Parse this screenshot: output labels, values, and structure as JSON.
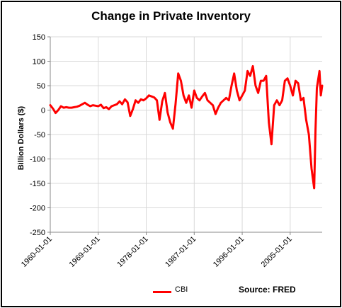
{
  "title": "Change in Private Inventory",
  "source_text": "Source: FRED",
  "chart_data": {
    "type": "line",
    "title": "Change in Private Inventory",
    "xlabel": "",
    "ylabel": "Billion Dollars ($)",
    "ylim": [
      -250,
      150
    ],
    "y_ticks": [
      -250,
      -200,
      -150,
      -100,
      -50,
      0,
      50,
      100,
      150
    ],
    "x_tick_labels": [
      "1960-01-01",
      "1969-01-01",
      "1978-01-01",
      "1987-01-01",
      "1996-01-01",
      "2005-01-01"
    ],
    "x_range": [
      "1960-01-01",
      "2011-01-01"
    ],
    "grid": true,
    "legend": "bottom-center",
    "color": "#ff0000",
    "series": [
      {
        "name": "CBI",
        "points": [
          [
            "1960-01-01",
            10
          ],
          [
            "1960-07-01",
            3
          ],
          [
            "1961-01-01",
            -6
          ],
          [
            "1961-07-01",
            0
          ],
          [
            "1962-01-01",
            8
          ],
          [
            "1962-07-01",
            5
          ],
          [
            "1963-01-01",
            6
          ],
          [
            "1963-07-01",
            5
          ],
          [
            "1964-01-01",
            5
          ],
          [
            "1964-07-01",
            6
          ],
          [
            "1965-01-01",
            7
          ],
          [
            "1965-07-01",
            9
          ],
          [
            "1966-01-01",
            12
          ],
          [
            "1966-07-01",
            15
          ],
          [
            "1967-01-01",
            11
          ],
          [
            "1967-07-01",
            8
          ],
          [
            "1968-01-01",
            10
          ],
          [
            "1968-07-01",
            9
          ],
          [
            "1969-01-01",
            8
          ],
          [
            "1969-07-01",
            11
          ],
          [
            "1970-01-01",
            4
          ],
          [
            "1970-07-01",
            6
          ],
          [
            "1971-01-01",
            2
          ],
          [
            "1971-07-01",
            8
          ],
          [
            "1972-01-01",
            10
          ],
          [
            "1972-07-01",
            12
          ],
          [
            "1973-01-01",
            18
          ],
          [
            "1973-07-01",
            12
          ],
          [
            "1974-01-01",
            22
          ],
          [
            "1974-07-01",
            16
          ],
          [
            "1975-01-01",
            -12
          ],
          [
            "1975-07-01",
            2
          ],
          [
            "1976-01-01",
            20
          ],
          [
            "1976-07-01",
            15
          ],
          [
            "1977-01-01",
            22
          ],
          [
            "1977-07-01",
            20
          ],
          [
            "1978-01-01",
            24
          ],
          [
            "1978-07-01",
            30
          ],
          [
            "1979-01-01",
            28
          ],
          [
            "1979-07-01",
            26
          ],
          [
            "1980-01-01",
            20
          ],
          [
            "1980-07-01",
            -20
          ],
          [
            "1981-01-01",
            18
          ],
          [
            "1981-07-01",
            35
          ],
          [
            "1982-01-01",
            -5
          ],
          [
            "1982-07-01",
            -25
          ],
          [
            "1983-01-01",
            -38
          ],
          [
            "1983-07-01",
            12
          ],
          [
            "1984-01-01",
            75
          ],
          [
            "1984-07-01",
            60
          ],
          [
            "1985-01-01",
            30
          ],
          [
            "1985-07-01",
            15
          ],
          [
            "1986-01-01",
            30
          ],
          [
            "1986-07-01",
            5
          ],
          [
            "1987-01-01",
            40
          ],
          [
            "1987-07-01",
            25
          ],
          [
            "1988-01-01",
            20
          ],
          [
            "1988-07-01",
            28
          ],
          [
            "1989-01-01",
            35
          ],
          [
            "1989-07-01",
            20
          ],
          [
            "1990-01-01",
            15
          ],
          [
            "1990-07-01",
            10
          ],
          [
            "1991-01-01",
            -8
          ],
          [
            "1991-07-01",
            5
          ],
          [
            "1992-01-01",
            15
          ],
          [
            "1992-07-01",
            20
          ],
          [
            "1993-01-01",
            25
          ],
          [
            "1993-07-01",
            20
          ],
          [
            "1994-01-01",
            50
          ],
          [
            "1994-07-01",
            75
          ],
          [
            "1995-01-01",
            40
          ],
          [
            "1995-07-01",
            20
          ],
          [
            "1996-01-01",
            30
          ],
          [
            "1996-07-01",
            40
          ],
          [
            "1997-01-01",
            80
          ],
          [
            "1997-07-01",
            70
          ],
          [
            "1998-01-01",
            90
          ],
          [
            "1998-07-01",
            50
          ],
          [
            "1999-01-01",
            35
          ],
          [
            "1999-07-01",
            60
          ],
          [
            "2000-01-01",
            60
          ],
          [
            "2000-07-01",
            70
          ],
          [
            "2001-01-01",
            -25
          ],
          [
            "2001-07-01",
            -70
          ],
          [
            "2002-01-01",
            10
          ],
          [
            "2002-07-01",
            20
          ],
          [
            "2003-01-01",
            10
          ],
          [
            "2003-07-01",
            20
          ],
          [
            "2004-01-01",
            60
          ],
          [
            "2004-07-01",
            65
          ],
          [
            "2005-01-01",
            50
          ],
          [
            "2005-07-01",
            30
          ],
          [
            "2006-01-01",
            60
          ],
          [
            "2006-07-01",
            55
          ],
          [
            "2007-01-01",
            20
          ],
          [
            "2007-07-01",
            25
          ],
          [
            "2008-01-01",
            -20
          ],
          [
            "2008-07-01",
            -50
          ],
          [
            "2009-01-01",
            -120
          ],
          [
            "2009-07-01",
            -160
          ],
          [
            "2009-10-01",
            -40
          ],
          [
            "2010-01-01",
            45
          ],
          [
            "2010-07-01",
            80
          ],
          [
            "2010-10-01",
            30
          ],
          [
            "2011-01-01",
            50
          ]
        ]
      }
    ]
  }
}
